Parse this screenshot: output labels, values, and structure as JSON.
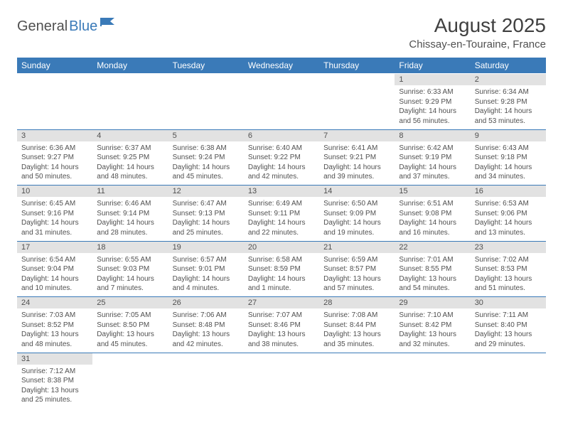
{
  "logo": {
    "part1": "General",
    "part2": "Blue",
    "color1": "#505050",
    "color2": "#3a7ab8"
  },
  "title": "August 2025",
  "location": "Chissay-en-Touraine, France",
  "header_bg": "#3a7ab8",
  "daynum_bg": "#e2e2e2",
  "text_color": "#505050",
  "days": [
    "Sunday",
    "Monday",
    "Tuesday",
    "Wednesday",
    "Thursday",
    "Friday",
    "Saturday"
  ],
  "weeks": [
    [
      null,
      null,
      null,
      null,
      null,
      {
        "n": "1",
        "sr": "6:33 AM",
        "ss": "9:29 PM",
        "dl": "14 hours and 56 minutes."
      },
      {
        "n": "2",
        "sr": "6:34 AM",
        "ss": "9:28 PM",
        "dl": "14 hours and 53 minutes."
      }
    ],
    [
      {
        "n": "3",
        "sr": "6:36 AM",
        "ss": "9:27 PM",
        "dl": "14 hours and 50 minutes."
      },
      {
        "n": "4",
        "sr": "6:37 AM",
        "ss": "9:25 PM",
        "dl": "14 hours and 48 minutes."
      },
      {
        "n": "5",
        "sr": "6:38 AM",
        "ss": "9:24 PM",
        "dl": "14 hours and 45 minutes."
      },
      {
        "n": "6",
        "sr": "6:40 AM",
        "ss": "9:22 PM",
        "dl": "14 hours and 42 minutes."
      },
      {
        "n": "7",
        "sr": "6:41 AM",
        "ss": "9:21 PM",
        "dl": "14 hours and 39 minutes."
      },
      {
        "n": "8",
        "sr": "6:42 AM",
        "ss": "9:19 PM",
        "dl": "14 hours and 37 minutes."
      },
      {
        "n": "9",
        "sr": "6:43 AM",
        "ss": "9:18 PM",
        "dl": "14 hours and 34 minutes."
      }
    ],
    [
      {
        "n": "10",
        "sr": "6:45 AM",
        "ss": "9:16 PM",
        "dl": "14 hours and 31 minutes."
      },
      {
        "n": "11",
        "sr": "6:46 AM",
        "ss": "9:14 PM",
        "dl": "14 hours and 28 minutes."
      },
      {
        "n": "12",
        "sr": "6:47 AM",
        "ss": "9:13 PM",
        "dl": "14 hours and 25 minutes."
      },
      {
        "n": "13",
        "sr": "6:49 AM",
        "ss": "9:11 PM",
        "dl": "14 hours and 22 minutes."
      },
      {
        "n": "14",
        "sr": "6:50 AM",
        "ss": "9:09 PM",
        "dl": "14 hours and 19 minutes."
      },
      {
        "n": "15",
        "sr": "6:51 AM",
        "ss": "9:08 PM",
        "dl": "14 hours and 16 minutes."
      },
      {
        "n": "16",
        "sr": "6:53 AM",
        "ss": "9:06 PM",
        "dl": "14 hours and 13 minutes."
      }
    ],
    [
      {
        "n": "17",
        "sr": "6:54 AM",
        "ss": "9:04 PM",
        "dl": "14 hours and 10 minutes."
      },
      {
        "n": "18",
        "sr": "6:55 AM",
        "ss": "9:03 PM",
        "dl": "14 hours and 7 minutes."
      },
      {
        "n": "19",
        "sr": "6:57 AM",
        "ss": "9:01 PM",
        "dl": "14 hours and 4 minutes."
      },
      {
        "n": "20",
        "sr": "6:58 AM",
        "ss": "8:59 PM",
        "dl": "14 hours and 1 minute."
      },
      {
        "n": "21",
        "sr": "6:59 AM",
        "ss": "8:57 PM",
        "dl": "13 hours and 57 minutes."
      },
      {
        "n": "22",
        "sr": "7:01 AM",
        "ss": "8:55 PM",
        "dl": "13 hours and 54 minutes."
      },
      {
        "n": "23",
        "sr": "7:02 AM",
        "ss": "8:53 PM",
        "dl": "13 hours and 51 minutes."
      }
    ],
    [
      {
        "n": "24",
        "sr": "7:03 AM",
        "ss": "8:52 PM",
        "dl": "13 hours and 48 minutes."
      },
      {
        "n": "25",
        "sr": "7:05 AM",
        "ss": "8:50 PM",
        "dl": "13 hours and 45 minutes."
      },
      {
        "n": "26",
        "sr": "7:06 AM",
        "ss": "8:48 PM",
        "dl": "13 hours and 42 minutes."
      },
      {
        "n": "27",
        "sr": "7:07 AM",
        "ss": "8:46 PM",
        "dl": "13 hours and 38 minutes."
      },
      {
        "n": "28",
        "sr": "7:08 AM",
        "ss": "8:44 PM",
        "dl": "13 hours and 35 minutes."
      },
      {
        "n": "29",
        "sr": "7:10 AM",
        "ss": "8:42 PM",
        "dl": "13 hours and 32 minutes."
      },
      {
        "n": "30",
        "sr": "7:11 AM",
        "ss": "8:40 PM",
        "dl": "13 hours and 29 minutes."
      }
    ],
    [
      {
        "n": "31",
        "sr": "7:12 AM",
        "ss": "8:38 PM",
        "dl": "13 hours and 25 minutes."
      },
      null,
      null,
      null,
      null,
      null,
      null
    ]
  ],
  "labels": {
    "sunrise": "Sunrise:",
    "sunset": "Sunset:",
    "daylight": "Daylight:"
  }
}
